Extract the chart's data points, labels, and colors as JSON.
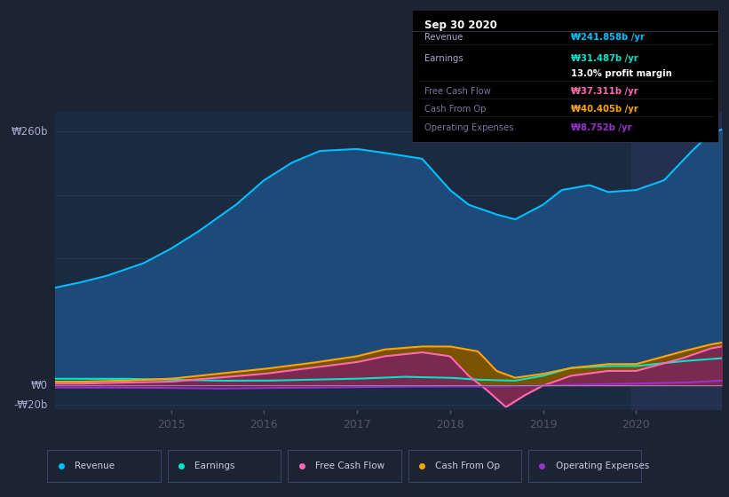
{
  "bg_color": "#1c2333",
  "plot_bg": "#1a2a40",
  "dark_bg": "#141a28",
  "highlight_bg": "#243050",
  "y_label_top": "₩260b",
  "y_label_zero": "₩0",
  "y_label_neg": "-₩20b",
  "legend": [
    {
      "label": "Revenue",
      "color": "#00bfff"
    },
    {
      "label": "Earnings",
      "color": "#00e5cc"
    },
    {
      "label": "Free Cash Flow",
      "color": "#ff69b4"
    },
    {
      "label": "Cash From Op",
      "color": "#ffa500"
    },
    {
      "label": "Operating Expenses",
      "color": "#9932cc"
    }
  ],
  "info_box_title": "Sep 30 2020",
  "info_rows": [
    {
      "label": "Revenue",
      "value": "₩241.858b /yr",
      "value_color": "#00bfff",
      "label_color": "#aaaacc"
    },
    {
      "label": "Earnings",
      "value": "₩31.487b /yr",
      "value_color": "#00e5cc",
      "label_color": "#aaaacc"
    },
    {
      "label": "",
      "value": "13.0% profit margin",
      "value_color": "#dddddd",
      "label_color": "#aaaacc"
    },
    {
      "label": "Free Cash Flow",
      "value": "₩37.311b /yr",
      "value_color": "#ff69b4",
      "label_color": "#777799"
    },
    {
      "label": "Cash From Op",
      "value": "₩40.405b /yr",
      "value_color": "#ffa500",
      "label_color": "#777799"
    },
    {
      "label": "Operating Expenses",
      "value": "₩8.752b /yr",
      "value_color": "#9932cc",
      "label_color": "#777799"
    }
  ],
  "xlim": [
    2013.75,
    2020.92
  ],
  "ylim": [
    -25,
    280
  ],
  "x_ticks": [
    2015,
    2016,
    2017,
    2018,
    2019,
    2020
  ],
  "revenue_color": "#00bfff",
  "revenue_fill": "#1e4a7a",
  "earnings_color": "#00e5cc",
  "earnings_fill": "#006655",
  "fcf_color": "#ff69b4",
  "fcf_fill": "#7a2a50",
  "cashop_color": "#ffa500",
  "cashop_fill": "#7a5200",
  "opex_color": "#9932cc",
  "opex_fill": "#3a1555"
}
